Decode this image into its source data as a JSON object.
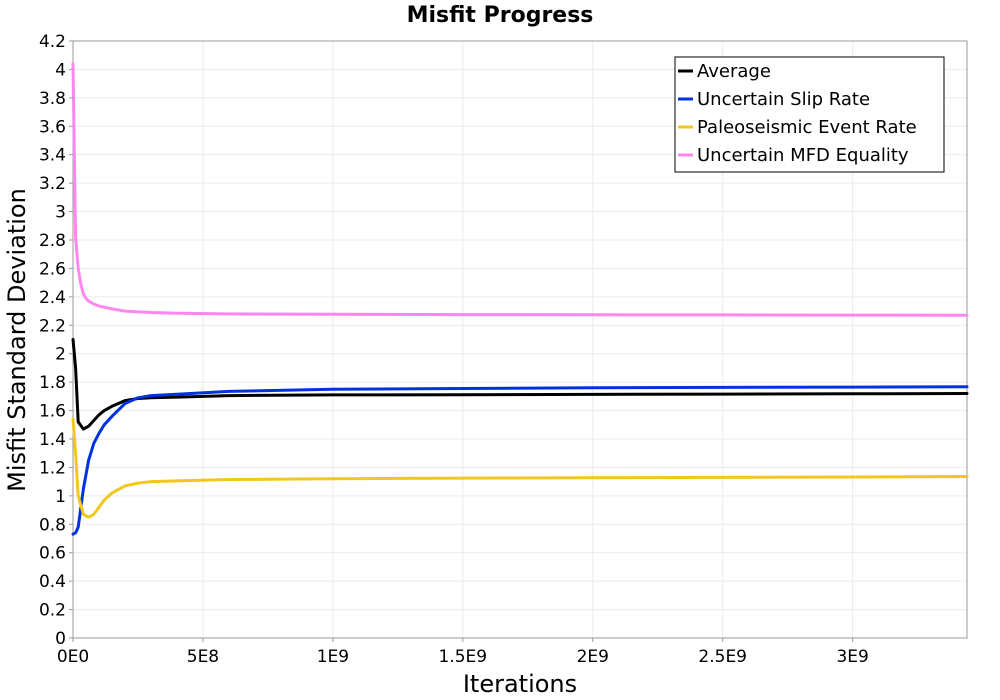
{
  "chart_data": {
    "type": "line",
    "title": "Misfit Progress",
    "xlabel": "Iterations",
    "ylabel": "Misfit Standard Deviation",
    "xlim": [
      0,
      3440000000
    ],
    "ylim": [
      0,
      4.2
    ],
    "x_ticks": [
      {
        "value": 0,
        "label": "0E0"
      },
      {
        "value": 500000000,
        "label": "5E8"
      },
      {
        "value": 1000000000,
        "label": "1E9"
      },
      {
        "value": 1500000000,
        "label": "1.5E9"
      },
      {
        "value": 2000000000,
        "label": "2E9"
      },
      {
        "value": 2500000000,
        "label": "2.5E9"
      },
      {
        "value": 3000000000,
        "label": "3E9"
      }
    ],
    "y_ticks": [
      {
        "value": 0,
        "label": "0"
      },
      {
        "value": 0.2,
        "label": "0.2"
      },
      {
        "value": 0.4,
        "label": "0.4"
      },
      {
        "value": 0.6,
        "label": "0.6"
      },
      {
        "value": 0.8,
        "label": "0.8"
      },
      {
        "value": 1,
        "label": "1"
      },
      {
        "value": 1.2,
        "label": "1.2"
      },
      {
        "value": 1.4,
        "label": "1.4"
      },
      {
        "value": 1.6,
        "label": "1.6"
      },
      {
        "value": 1.8,
        "label": "1.8"
      },
      {
        "value": 2,
        "label": "2"
      },
      {
        "value": 2.2,
        "label": "2.2"
      },
      {
        "value": 2.4,
        "label": "2.4"
      },
      {
        "value": 2.6,
        "label": "2.6"
      },
      {
        "value": 2.8,
        "label": "2.8"
      },
      {
        "value": 3,
        "label": "3"
      },
      {
        "value": 3.2,
        "label": "3.2"
      },
      {
        "value": 3.4,
        "label": "3.4"
      },
      {
        "value": 3.6,
        "label": "3.6"
      },
      {
        "value": 3.8,
        "label": "3.8"
      },
      {
        "value": 4,
        "label": "4"
      },
      {
        "value": 4.2,
        "label": "4.2"
      }
    ],
    "grid": true,
    "legend_position": "top-right",
    "series": [
      {
        "name": "Average",
        "color": "#000000",
        "x": [
          0,
          10000000,
          20000000,
          40000000,
          60000000,
          80000000,
          100000000,
          120000000,
          150000000,
          200000000,
          250000000,
          300000000,
          400000000,
          600000000,
          1000000000,
          1500000000,
          2000000000,
          2500000000,
          3000000000,
          3440000000
        ],
        "y": [
          2.1,
          1.9,
          1.52,
          1.47,
          1.49,
          1.53,
          1.57,
          1.6,
          1.63,
          1.67,
          1.685,
          1.69,
          1.695,
          1.705,
          1.71,
          1.712,
          1.714,
          1.716,
          1.718,
          1.72
        ]
      },
      {
        "name": "Uncertain Slip Rate",
        "color": "#0033dd",
        "x": [
          0,
          10000000,
          20000000,
          40000000,
          60000000,
          80000000,
          100000000,
          120000000,
          150000000,
          200000000,
          250000000,
          300000000,
          400000000,
          600000000,
          1000000000,
          1500000000,
          2000000000,
          2500000000,
          3000000000,
          3440000000
        ],
        "y": [
          0.73,
          0.74,
          0.78,
          1.05,
          1.25,
          1.37,
          1.44,
          1.5,
          1.56,
          1.65,
          1.69,
          1.705,
          1.715,
          1.735,
          1.75,
          1.755,
          1.76,
          1.763,
          1.765,
          1.768
        ]
      },
      {
        "name": "Paleoseismic Event Rate",
        "color": "#f2c81e",
        "x": [
          0,
          10000000,
          20000000,
          40000000,
          60000000,
          80000000,
          100000000,
          120000000,
          150000000,
          200000000,
          250000000,
          300000000,
          400000000,
          600000000,
          1000000000,
          1500000000,
          2000000000,
          2500000000,
          3000000000,
          3440000000
        ],
        "y": [
          1.54,
          1.3,
          1.0,
          0.87,
          0.85,
          0.87,
          0.92,
          0.97,
          1.02,
          1.07,
          1.09,
          1.1,
          1.105,
          1.115,
          1.12,
          1.125,
          1.128,
          1.13,
          1.133,
          1.136
        ]
      },
      {
        "name": "Uncertain MFD Equality",
        "color": "#ff88ee",
        "x": [
          0,
          5000000,
          10000000,
          20000000,
          30000000,
          40000000,
          50000000,
          60000000,
          80000000,
          100000000,
          150000000,
          200000000,
          300000000,
          400000000,
          600000000,
          1000000000,
          1500000000,
          2000000000,
          2500000000,
          3000000000,
          3440000000
        ],
        "y": [
          4.04,
          3.4,
          2.82,
          2.6,
          2.49,
          2.42,
          2.39,
          2.37,
          2.35,
          2.335,
          2.315,
          2.3,
          2.29,
          2.285,
          2.28,
          2.277,
          2.275,
          2.274,
          2.273,
          2.272,
          2.27
        ]
      }
    ]
  }
}
